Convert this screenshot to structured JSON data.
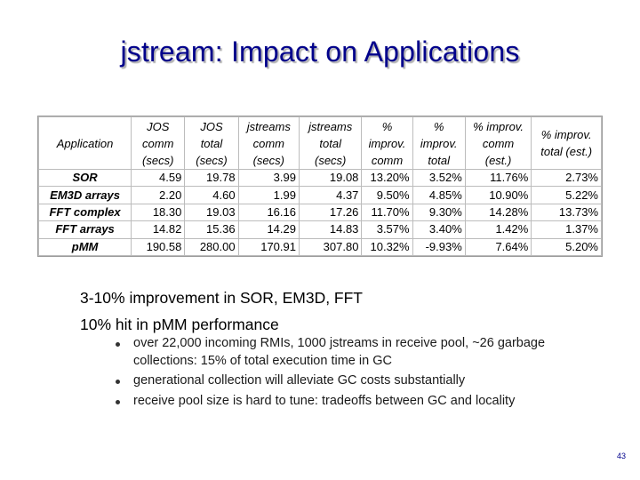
{
  "title": "jstream: Impact on Applications",
  "table": {
    "headers": [
      [
        "Application"
      ],
      [
        "JOS",
        "comm",
        "(secs)"
      ],
      [
        "JOS",
        "total",
        "(secs)"
      ],
      [
        "jstreams",
        "comm",
        "(secs)"
      ],
      [
        "jstreams",
        "total",
        "(secs)"
      ],
      [
        "%",
        "improv.",
        "comm"
      ],
      [
        "%",
        "improv.",
        "total"
      ],
      [
        "% improv.",
        "comm",
        "(est.)"
      ],
      [
        "% improv.",
        "total (est.)"
      ]
    ],
    "rows": [
      [
        "SOR",
        "4.59",
        "19.78",
        "3.99",
        "19.08",
        "13.20%",
        "3.52%",
        "11.76%",
        "2.73%"
      ],
      [
        "EM3D arrays",
        "2.20",
        "4.60",
        "1.99",
        "4.37",
        "9.50%",
        "4.85%",
        "10.90%",
        "5.22%"
      ],
      [
        "FFT complex",
        "18.30",
        "19.03",
        "16.16",
        "17.26",
        "11.70%",
        "9.30%",
        "14.28%",
        "13.73%"
      ],
      [
        "FFT arrays",
        "14.82",
        "15.36",
        "14.29",
        "14.83",
        "3.57%",
        "3.40%",
        "1.42%",
        "1.37%"
      ],
      [
        "pMM",
        "190.58",
        "280.00",
        "170.91",
        "307.80",
        "10.32%",
        "-9.93%",
        "7.64%",
        "5.20%"
      ]
    ]
  },
  "body": {
    "line1": "3-10% improvement in SOR, EM3D, FFT",
    "line2": "10% hit in pMM performance",
    "bullets": [
      "over 22,000 incoming RMIs, 1000 jstreams in receive pool, ~26 garbage collections: 15% of total execution time in GC",
      "generational collection will alleviate GC costs substantially",
      "receive pool size is hard to tune: tradeoffs between GC and locality"
    ]
  },
  "page_number": "43",
  "colors": {
    "title": "#00008b",
    "page_number": "#00008b"
  }
}
